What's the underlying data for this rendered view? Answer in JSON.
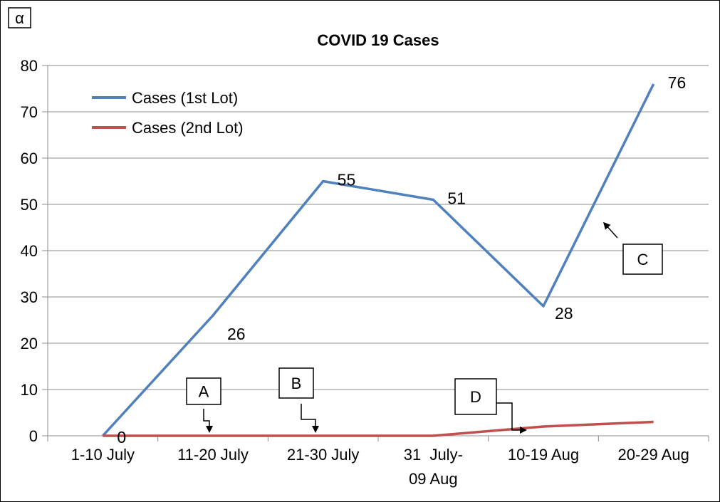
{
  "corner_label": "α",
  "chart_data": {
    "type": "line",
    "title": "COVID 19 Cases",
    "xlabel": "",
    "ylabel": "",
    "categories": [
      [
        "1-10 July"
      ],
      [
        "11-20 July"
      ],
      [
        "21-30 July"
      ],
      [
        "31  July-",
        "09 Aug"
      ],
      [
        "10-19 Aug"
      ],
      [
        "20-29 Aug"
      ]
    ],
    "ylim": [
      0,
      80
    ],
    "yticks": [
      0,
      10,
      20,
      30,
      40,
      50,
      60,
      70,
      80
    ],
    "grid": true,
    "legend_position": "top-left",
    "series": [
      {
        "name": "Cases (1st Lot)",
        "color": "#4f81bd",
        "values": [
          0,
          26,
          55,
          51,
          28,
          76
        ],
        "labels": [
          "0",
          "26",
          "55",
          "51",
          "28",
          "76"
        ]
      },
      {
        "name": "Cases (2nd Lot)",
        "color": "#c0504d",
        "values": [
          0,
          0,
          0,
          0,
          2,
          3
        ]
      }
    ],
    "annotations": [
      {
        "label": "A"
      },
      {
        "label": "B"
      },
      {
        "label": "C"
      },
      {
        "label": "D"
      }
    ]
  }
}
